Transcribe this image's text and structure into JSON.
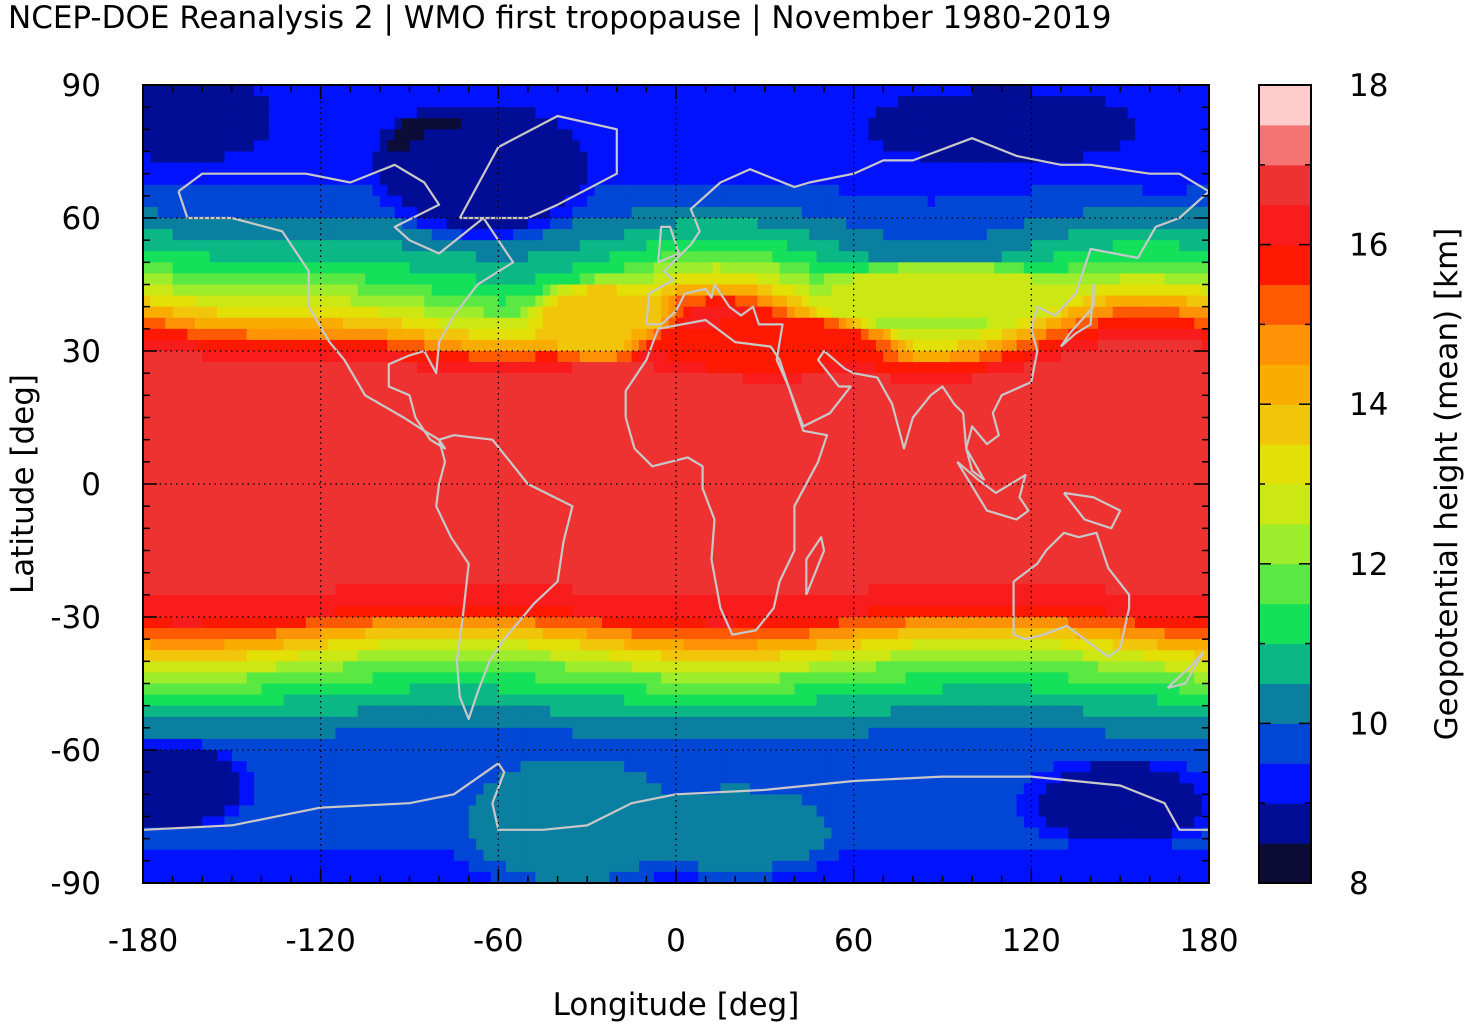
{
  "title": "NCEP-DOE Reanalysis 2 | WMO first tropopause | November 1980-2019",
  "chart_data": {
    "type": "heatmap",
    "title": "NCEP-DOE Reanalysis 2 | WMO first tropopause | November 1980-2019",
    "xlabel": "Longitude [deg]",
    "ylabel": "Latitude [deg]",
    "xlim": [
      -180,
      180
    ],
    "ylim": [
      -90,
      90
    ],
    "xticks": [
      "-180",
      "-120",
      "-60",
      "0",
      "60",
      "120",
      "180"
    ],
    "yticks": [
      "90",
      "60",
      "30",
      "0",
      "-30",
      "-60",
      "-90"
    ],
    "grid": true,
    "colorbar": {
      "label": "Geopotential height (mean) [km]",
      "range": [
        8,
        18
      ],
      "ticks": [
        "18",
        "16",
        "14",
        "12",
        "10",
        "8"
      ],
      "levels": [
        8,
        8.5,
        9,
        9.5,
        10,
        10.5,
        11,
        11.5,
        12,
        12.5,
        13,
        13.5,
        14,
        14.5,
        15,
        15.5,
        16,
        16.5,
        17,
        17.5,
        18
      ],
      "colors": [
        "#0c0c36",
        "#020d96",
        "#0012ff",
        "#0047d6",
        "#0a7fa0",
        "#0bb885",
        "#14e05a",
        "#5ae843",
        "#9ded2d",
        "#cbe815",
        "#e3e007",
        "#f1c50a",
        "#f8ad00",
        "#ff9205",
        "#ff5a00",
        "#ff1900",
        "#f81c1c",
        "#ee3232",
        "#f47474",
        "#ffcccc"
      ]
    },
    "zonal_mean_profile": {
      "lat": [
        90,
        80,
        70,
        62,
        55,
        48,
        42,
        38,
        35,
        32,
        28,
        20,
        10,
        0,
        -10,
        -20,
        -28,
        -32,
        -35,
        -38,
        -42,
        -48,
        -55,
        -62,
        -70,
        -80,
        -90
      ],
      "value": [
        9.0,
        9.1,
        9.3,
        9.8,
        10.5,
        11.3,
        12.4,
        13.5,
        14.5,
        15.6,
        16.5,
        16.7,
        16.9,
        17.0,
        16.9,
        16.7,
        16.3,
        15.2,
        14.0,
        13.0,
        12.0,
        11.0,
        10.1,
        9.6,
        9.5,
        9.6,
        9.3
      ]
    },
    "anomalies": [
      {
        "lon": -75,
        "lat": 74,
        "rx": 28,
        "ry": 11,
        "value": 8.3
      },
      {
        "lon": -80,
        "lat": 77,
        "rx": 18,
        "ry": 7,
        "value": 8.0
      },
      {
        "lon": -65,
        "lat": 70,
        "rx": 40,
        "ry": 16,
        "value": 8.6
      },
      {
        "lon": -165,
        "lat": 82,
        "rx": 30,
        "ry": 10,
        "value": 8.5
      },
      {
        "lon": 110,
        "lat": 80,
        "rx": 50,
        "ry": 9,
        "value": 8.7
      },
      {
        "lon": 165,
        "lat": 70,
        "rx": 14,
        "ry": 5,
        "value": 9.3
      },
      {
        "lon": -25,
        "lat": 37,
        "rx": 28,
        "ry": 10,
        "value": 13.6
      },
      {
        "lon": 30,
        "lat": 31,
        "rx": 50,
        "ry": 8,
        "value": 15.9
      },
      {
        "lon": 90,
        "lat": 43,
        "rx": 50,
        "ry": 8,
        "value": 12.7
      },
      {
        "lon": -20,
        "lat": 10,
        "rx": 28,
        "ry": 16,
        "value": 16.6
      },
      {
        "lon": -160,
        "lat": 8,
        "rx": 25,
        "ry": 14,
        "value": 16.6
      },
      {
        "lon": 55,
        "lat": -5,
        "rx": 40,
        "ry": 12,
        "value": 16.6
      },
      {
        "lon": -120,
        "lat": -8,
        "rx": 55,
        "ry": 12,
        "value": 16.6
      },
      {
        "lon": 160,
        "lat": -8,
        "rx": 25,
        "ry": 10,
        "value": 16.6
      },
      {
        "lon": -170,
        "lat": -68,
        "rx": 28,
        "ry": 11,
        "value": 8.6
      },
      {
        "lon": 150,
        "lat": -72,
        "rx": 35,
        "ry": 11,
        "value": 8.7
      },
      {
        "lon": -35,
        "lat": -76,
        "rx": 45,
        "ry": 18,
        "value": 10.2
      },
      {
        "lon": 20,
        "lat": -78,
        "rx": 40,
        "ry": 12,
        "value": 10.2
      }
    ]
  }
}
